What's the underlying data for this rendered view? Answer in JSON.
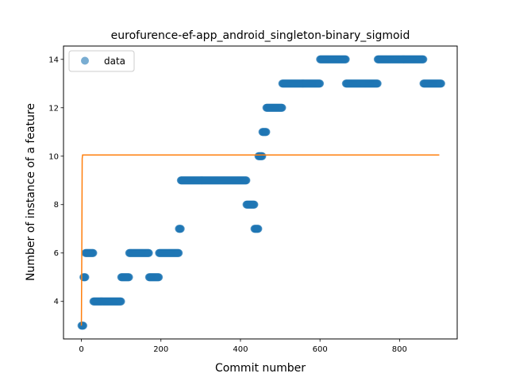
{
  "chart_data": {
    "type": "scatter",
    "title": "eurofurence-ef-app_android_singleton-binary_sigmoid",
    "xlabel": "Commit number",
    "ylabel": "Number of instance of a feature",
    "xlim": [
      -45,
      945
    ],
    "ylim": [
      2.45,
      14.55
    ],
    "xticks": [
      0,
      200,
      400,
      600,
      800
    ],
    "yticks": [
      4,
      6,
      8,
      10,
      12,
      14
    ],
    "grid": false,
    "legend": {
      "placement": "top-left",
      "entries": [
        "data"
      ]
    },
    "series": [
      {
        "name": "data",
        "kind": "scatter",
        "color": "#1f77b4",
        "segments": [
          {
            "x_start": 0,
            "x_end": 5,
            "y": 3
          },
          {
            "x_start": 5,
            "x_end": 10,
            "y": 5
          },
          {
            "x_start": 10,
            "x_end": 30,
            "y": 6
          },
          {
            "x_start": 30,
            "x_end": 100,
            "y": 4
          },
          {
            "x_start": 100,
            "x_end": 120,
            "y": 5
          },
          {
            "x_start": 120,
            "x_end": 170,
            "y": 6
          },
          {
            "x_start": 170,
            "x_end": 195,
            "y": 5
          },
          {
            "x_start": 195,
            "x_end": 245,
            "y": 6
          },
          {
            "x_start": 245,
            "x_end": 250,
            "y": 7
          },
          {
            "x_start": 250,
            "x_end": 415,
            "y": 9
          },
          {
            "x_start": 415,
            "x_end": 435,
            "y": 8
          },
          {
            "x_start": 435,
            "x_end": 445,
            "y": 7
          },
          {
            "x_start": 445,
            "x_end": 455,
            "y": 10
          },
          {
            "x_start": 455,
            "x_end": 465,
            "y": 11
          },
          {
            "x_start": 465,
            "x_end": 505,
            "y": 12
          },
          {
            "x_start": 505,
            "x_end": 600,
            "y": 13
          },
          {
            "x_start": 600,
            "x_end": 665,
            "y": 14
          },
          {
            "x_start": 665,
            "x_end": 745,
            "y": 13
          },
          {
            "x_start": 745,
            "x_end": 860,
            "y": 14
          },
          {
            "x_start": 860,
            "x_end": 905,
            "y": 13
          }
        ]
      },
      {
        "kind": "line",
        "color": "#ff7f0e",
        "x": [
          0,
          1,
          2,
          3,
          900
        ],
        "y": [
          3,
          6,
          9.9,
          10.05,
          10.05
        ]
      }
    ]
  }
}
